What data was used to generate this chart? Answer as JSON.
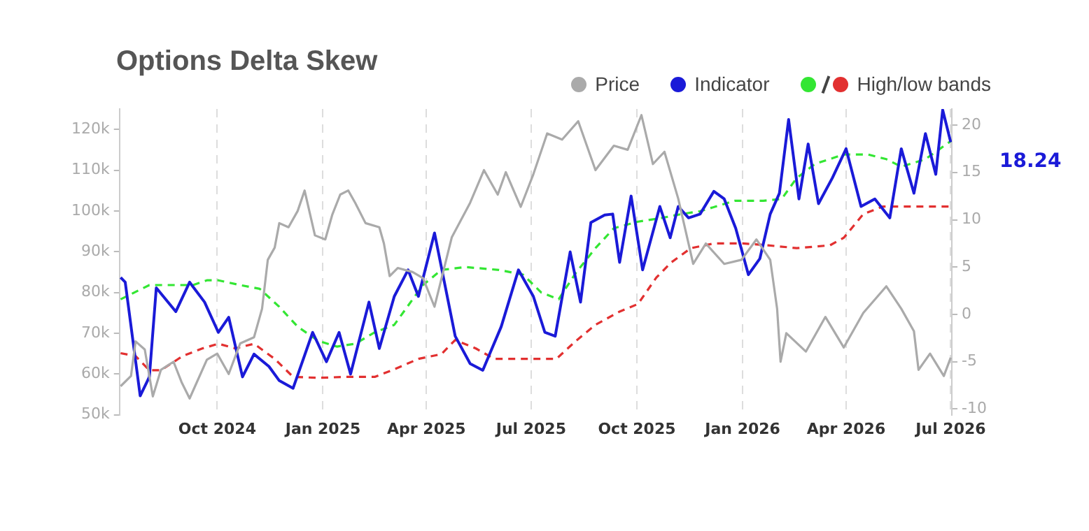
{
  "chart_data": {
    "type": "line",
    "title": "Options Delta Skew",
    "legend": "top right",
    "grid": "x",
    "marker": "none",
    "xlim": [
      "2024-07-08",
      "2026-07-02"
    ],
    "xticks": [
      {
        "value": "2024-10-01",
        "label": "Oct 2024"
      },
      {
        "value": "2025-01-01",
        "label": "Jan 2025"
      },
      {
        "value": "2025-04-01",
        "label": "Apr 2025"
      },
      {
        "value": "2025-07-01",
        "label": "Jul 2025"
      },
      {
        "value": "2025-10-01",
        "label": "Oct 2025"
      },
      {
        "value": "2026-01-01",
        "label": "Jan 2026"
      },
      {
        "value": "2026-04-01",
        "label": "Apr 2026"
      },
      {
        "value": "2026-07-01",
        "label": "Jul 2026"
      }
    ],
    "ylim": [
      50000,
      125000
    ],
    "yticks": [
      {
        "value": 50000,
        "label": "50k"
      },
      {
        "value": 60000,
        "label": "60k"
      },
      {
        "value": 70000,
        "label": "70k"
      },
      {
        "value": 80000,
        "label": "80k"
      },
      {
        "value": 90000,
        "label": "90k"
      },
      {
        "value": 100000,
        "label": "100k"
      },
      {
        "value": 110000,
        "label": "110k"
      },
      {
        "value": 120000,
        "label": "120k"
      }
    ],
    "y2lim": [
      -10.6,
      21.7
    ],
    "y2ticks": [
      -10,
      -5,
      0,
      5,
      10,
      15,
      20
    ],
    "annotations": [
      "18.24"
    ],
    "series": [
      {
        "name": "Price",
        "color": "#aaaaaa",
        "line_style": "solid",
        "x": [
          "2024-07-09",
          "2024-07-18",
          "2024-07-22",
          "2024-07-30",
          "2024-08-06",
          "2024-08-13",
          "2024-08-24",
          "2024-08-31",
          "2024-09-07",
          "2024-09-22",
          "2024-10-01",
          "2024-10-11",
          "2024-10-21",
          "2024-11-02",
          "2024-11-09",
          "2024-11-14",
          "2024-11-20",
          "2024-11-24",
          "2024-12-02",
          "2024-12-10",
          "2024-12-16",
          "2024-12-25",
          "2025-01-03",
          "2025-01-09",
          "2025-01-16",
          "2025-01-23",
          "2025-01-29",
          "2025-02-07",
          "2025-02-19",
          "2025-02-23",
          "2025-02-28",
          "2025-03-07",
          "2025-03-20",
          "2025-03-29",
          "2025-04-08",
          "2025-04-23",
          "2025-05-09",
          "2025-05-21",
          "2025-06-02",
          "2025-06-09",
          "2025-06-22",
          "2025-07-03",
          "2025-07-15",
          "2025-07-28",
          "2025-08-11",
          "2025-08-26",
          "2025-09-11",
          "2025-09-23",
          "2025-10-05",
          "2025-10-15",
          "2025-10-25",
          "2025-11-06",
          "2025-11-19",
          "2025-11-30",
          "2025-12-16",
          "2025-12-31",
          "2026-01-13",
          "2026-01-25",
          "2026-01-31",
          "2026-02-03",
          "2026-02-08",
          "2026-02-25",
          "2026-03-14",
          "2026-03-30",
          "2026-04-16",
          "2026-05-06",
          "2026-05-19",
          "2026-05-30",
          "2026-06-03",
          "2026-06-13",
          "2026-06-25",
          "2026-07-01"
        ],
        "values": [
          57000,
          59500,
          68000,
          66000,
          54500,
          61000,
          63000,
          58000,
          54000,
          63500,
          65000,
          60000,
          67500,
          69000,
          76000,
          88000,
          91000,
          97000,
          96000,
          100000,
          105000,
          94000,
          93000,
          99000,
          104000,
          105000,
          102000,
          97000,
          96000,
          92000,
          84000,
          86000,
          85000,
          83500,
          76500,
          93500,
          102000,
          110000,
          104000,
          109500,
          101000,
          109000,
          119000,
          117500,
          122000,
          110000,
          116000,
          115000,
          123500,
          111500,
          114500,
          103000,
          87000,
          92000,
          87000,
          88000,
          93000,
          88000,
          76000,
          63000,
          70000,
          65500,
          74000,
          66500,
          75000,
          81500,
          76000,
          70500,
          61000,
          65000,
          59500,
          64000
        ]
      },
      {
        "name": "Indicator",
        "color": "#1a1ad8",
        "line_style": "solid",
        "axis": "y2",
        "x": [
          "2024-07-09",
          "2024-07-13",
          "2024-07-26",
          "2024-08-03",
          "2024-08-09",
          "2024-08-26",
          "2024-09-07",
          "2024-09-20",
          "2024-10-02",
          "2024-10-11",
          "2024-10-23",
          "2024-11-02",
          "2024-11-15",
          "2024-11-24",
          "2024-12-06",
          "2024-12-23",
          "2025-01-04",
          "2025-01-15",
          "2025-01-25",
          "2025-02-10",
          "2025-02-19",
          "2025-03-04",
          "2025-03-16",
          "2025-03-25",
          "2025-04-08",
          "2025-04-26",
          "2025-05-09",
          "2025-05-20",
          "2025-06-05",
          "2025-06-20",
          "2025-07-03",
          "2025-07-13",
          "2025-07-22",
          "2025-08-04",
          "2025-08-13",
          "2025-08-22",
          "2025-09-03",
          "2025-09-10",
          "2025-09-16",
          "2025-09-26",
          "2025-10-06",
          "2025-10-21",
          "2025-10-30",
          "2025-11-06",
          "2025-11-15",
          "2025-11-25",
          "2025-12-07",
          "2025-12-16",
          "2025-12-26",
          "2026-01-06",
          "2026-01-16",
          "2026-01-25",
          "2026-02-02",
          "2026-02-10",
          "2026-02-19",
          "2026-02-27",
          "2026-03-08",
          "2026-03-20",
          "2026-04-01",
          "2026-04-14",
          "2026-04-26",
          "2026-05-09",
          "2026-05-19",
          "2026-05-30",
          "2026-06-09",
          "2026-06-18",
          "2026-06-24",
          "2026-07-01"
        ],
        "values": [
          3.9,
          3.4,
          -8.6,
          -6.6,
          2.8,
          0.3,
          3.4,
          1.3,
          -1.9,
          -0.3,
          -6.6,
          -4.2,
          -5.5,
          -7,
          -7.8,
          -1.9,
          -5,
          -1.9,
          -6.3,
          1.3,
          -3.6,
          1.9,
          4.7,
          1.9,
          8.6,
          -2.3,
          -5.2,
          -5.9,
          -1.3,
          4.7,
          1.9,
          -1.9,
          -2.3,
          6.6,
          1.3,
          9.7,
          10.5,
          10.6,
          5.5,
          12.5,
          4.7,
          11.4,
          8.1,
          11.4,
          10.2,
          10.6,
          13,
          12.2,
          9.1,
          4.2,
          5.9,
          10.6,
          12.8,
          20.6,
          12.2,
          18,
          11.7,
          14.4,
          17.5,
          11.4,
          12.2,
          10.2,
          17.5,
          12.8,
          19.1,
          14.8,
          21.6,
          18.2
        ]
      },
      {
        "color": "#33e633",
        "line_style": "dashed",
        "axis": "y2",
        "x": [
          "2024-07-09",
          "2024-08-03",
          "2024-09-10",
          "2024-09-22",
          "2024-10-02",
          "2024-10-21",
          "2024-11-07",
          "2024-11-24",
          "2024-12-10",
          "2024-12-28",
          "2025-01-13",
          "2025-01-29",
          "2025-02-15",
          "2025-03-04",
          "2025-03-29",
          "2025-04-14",
          "2025-05-05",
          "2025-06-03",
          "2025-06-24",
          "2025-07-10",
          "2025-07-25",
          "2025-08-09",
          "2025-08-26",
          "2025-09-11",
          "2025-10-02",
          "2025-10-23",
          "2025-11-09",
          "2025-11-25",
          "2025-12-25",
          "2026-01-19",
          "2026-02-04",
          "2026-02-17",
          "2026-03-05",
          "2026-03-30",
          "2026-04-20",
          "2026-05-06",
          "2026-05-19",
          "2026-06-09",
          "2026-07-01"
        ],
        "values": [
          1.6,
          3.1,
          3.1,
          3.6,
          3.6,
          3.1,
          2.7,
          0.8,
          -1.3,
          -2.8,
          -3.4,
          -3.1,
          -1.9,
          -1.1,
          3.1,
          4.7,
          5,
          4.7,
          4.2,
          2.3,
          1.6,
          4.4,
          7,
          9.1,
          9.8,
          10.2,
          10.6,
          10.9,
          12,
          12,
          12.2,
          14.4,
          15.9,
          16.9,
          16.9,
          16.4,
          15.6,
          16.4,
          18.3
        ]
      },
      {
        "name": "High/low bands",
        "color": "#e23030",
        "line_style": "dashed",
        "axis": "y2",
        "x": [
          "2024-07-09",
          "2024-07-22",
          "2024-08-03",
          "2024-08-13",
          "2024-09-01",
          "2024-09-18",
          "2024-10-02",
          "2024-10-17",
          "2024-11-02",
          "2024-11-20",
          "2024-12-06",
          "2024-12-28",
          "2025-01-21",
          "2025-02-15",
          "2025-03-04",
          "2025-03-25",
          "2025-04-14",
          "2025-04-26",
          "2025-05-14",
          "2025-05-30",
          "2025-06-24",
          "2025-07-23",
          "2025-08-09",
          "2025-08-26",
          "2025-09-16",
          "2025-10-02",
          "2025-10-18",
          "2025-10-31",
          "2025-11-17",
          "2025-12-07",
          "2026-01-01",
          "2026-01-23",
          "2026-02-17",
          "2026-03-18",
          "2026-03-30",
          "2026-04-16",
          "2026-05-03",
          "2026-05-24",
          "2026-07-01"
        ],
        "values": [
          -4.1,
          -4.4,
          -5.9,
          -5.9,
          -4.4,
          -3.6,
          -3.1,
          -3.6,
          -3.1,
          -4.7,
          -6.6,
          -6.7,
          -6.6,
          -6.6,
          -5.8,
          -4.7,
          -4.2,
          -2.7,
          -3.6,
          -4.7,
          -4.7,
          -4.7,
          -2.8,
          -1.1,
          0.3,
          1.1,
          3.9,
          5.5,
          7,
          7.5,
          7.5,
          7.3,
          7,
          7.3,
          8.1,
          10.6,
          11.4,
          11.4,
          11.4
        ]
      }
    ]
  }
}
